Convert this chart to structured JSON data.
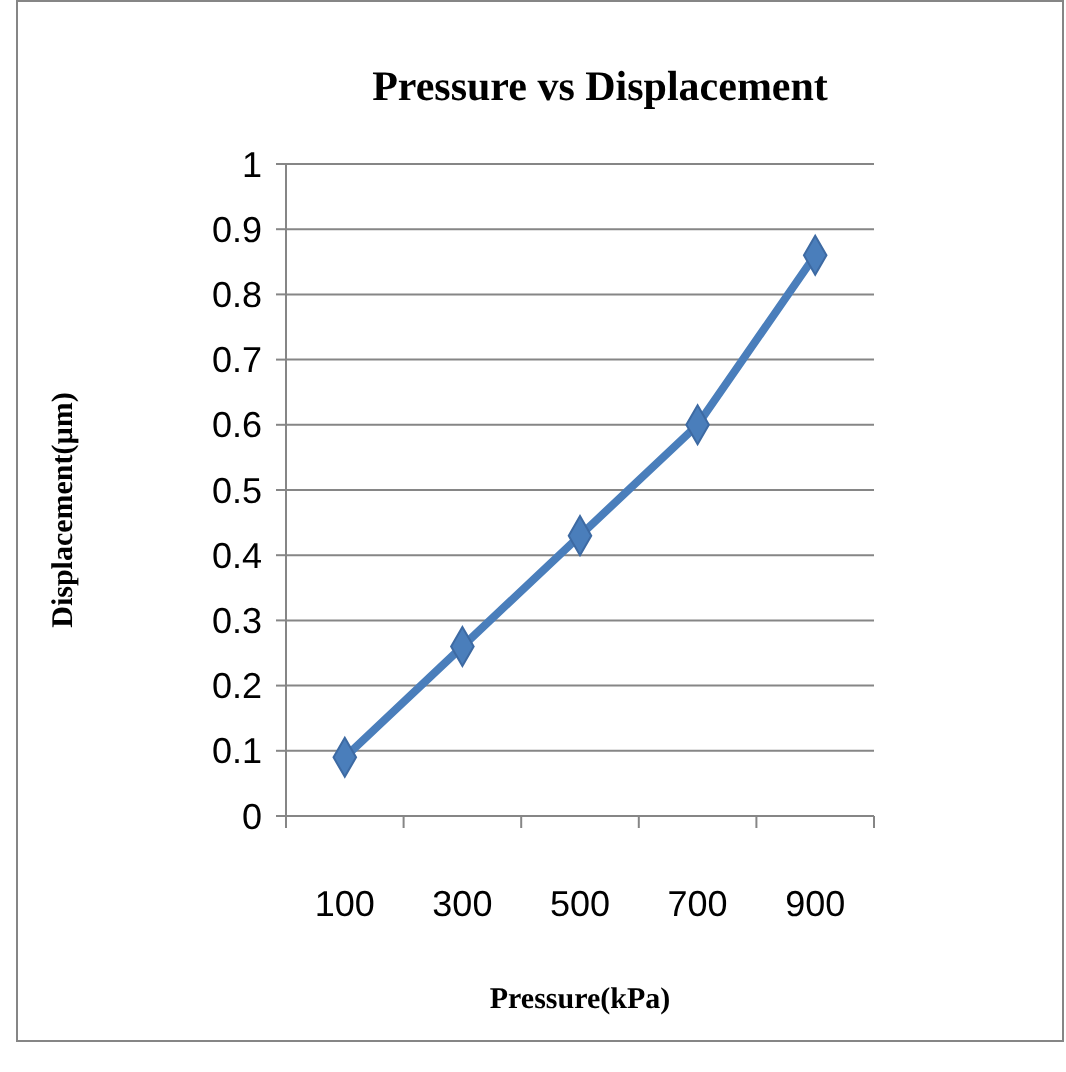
{
  "chart_data": {
    "type": "line",
    "title": "Pressure vs Displacement",
    "xlabel": "Pressure(kPa)",
    "ylabel": "Displacement(µm)",
    "categories": [
      "100",
      "300",
      "500",
      "700",
      "900"
    ],
    "series": [
      {
        "color": "#4a7ebb",
        "values": [
          0.09,
          0.26,
          0.43,
          0.6,
          0.86
        ]
      }
    ],
    "ylim": [
      0,
      1
    ],
    "yticks": [
      0,
      0.1,
      0.2,
      0.3,
      0.4,
      0.5,
      0.6,
      0.7,
      0.8,
      0.9,
      1
    ],
    "grid": "y",
    "marker": "diamond",
    "line_style": "solid"
  }
}
